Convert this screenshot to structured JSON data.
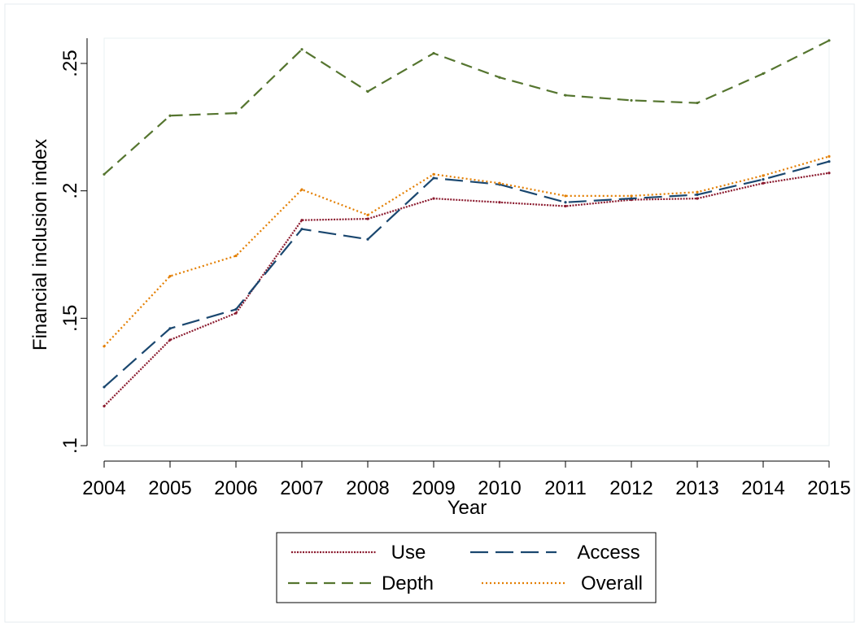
{
  "chart_data": {
    "type": "line",
    "xlabel": "Year",
    "ylabel": "Financial inclusion index",
    "x": [
      2004,
      2005,
      2006,
      2007,
      2008,
      2009,
      2010,
      2011,
      2012,
      2013,
      2014,
      2015
    ],
    "xticks": [
      "2004",
      "2005",
      "2006",
      "2007",
      "2008",
      "2009",
      "2010",
      "2011",
      "2012",
      "2013",
      "2014",
      "2015"
    ],
    "ylim": [
      0.1,
      0.26
    ],
    "yticks": [
      {
        "value": 0.1,
        "label": ".1"
      },
      {
        "value": 0.15,
        "label": ".15"
      },
      {
        "value": 0.2,
        "label": ".2"
      },
      {
        "value": 0.25,
        "label": ".25"
      }
    ],
    "grid": false,
    "legend_position": "bottom",
    "series": [
      {
        "name": "Use",
        "color": "#8b1a2e",
        "dash": "dotted-dense",
        "values": [
          0.1155,
          0.1415,
          0.152,
          0.1885,
          0.189,
          0.197,
          0.1955,
          0.194,
          0.1965,
          0.197,
          0.203,
          0.207
        ]
      },
      {
        "name": "Access",
        "color": "#1a476f",
        "dash": "long-dash",
        "values": [
          0.123,
          0.146,
          0.1535,
          0.185,
          0.181,
          0.205,
          0.2025,
          0.1955,
          0.197,
          0.1985,
          0.2045,
          0.2115
        ]
      },
      {
        "name": "Depth",
        "color": "#55752f",
        "dash": "dash",
        "values": [
          0.2065,
          0.2295,
          0.2305,
          0.2555,
          0.239,
          0.254,
          0.2445,
          0.2375,
          0.2355,
          0.2345,
          0.246,
          0.259
        ]
      },
      {
        "name": "Overall",
        "color": "#e37e00",
        "dash": "dot",
        "values": [
          0.139,
          0.1665,
          0.1745,
          0.2005,
          0.1905,
          0.2065,
          0.203,
          0.198,
          0.198,
          0.1995,
          0.206,
          0.2135
        ]
      }
    ]
  }
}
